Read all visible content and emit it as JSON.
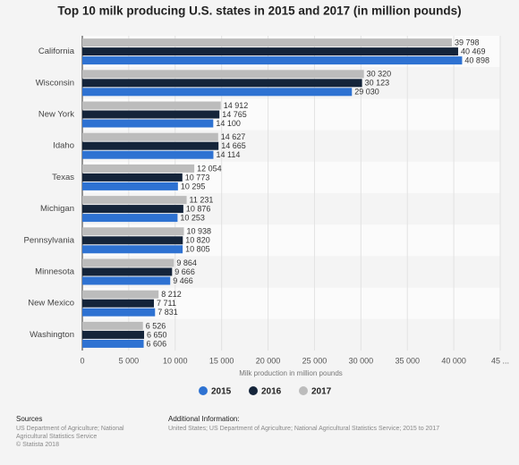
{
  "chart_data": {
    "type": "hbar",
    "title": "Top 10 milk producing U.S. states in 2015 and 2017 (in million pounds)",
    "x_label": "Milk production in million pounds",
    "categories": [
      "California",
      "Wisconsin",
      "New York",
      "Idaho",
      "Texas",
      "Michigan",
      "Pennsylvania",
      "Minnesota",
      "New Mexico",
      "Washington"
    ],
    "series": [
      {
        "name": "2015",
        "color": "#2e72d2",
        "values": [
          40898,
          29030,
          14100,
          14114,
          10295,
          10253,
          10805,
          9466,
          7831,
          6606
        ],
        "value_labels": [
          "40 898",
          "29 030",
          "14 100",
          "14 114",
          "10 295",
          "10 253",
          "10 805",
          "9 466",
          "7 831",
          "6 606"
        ]
      },
      {
        "name": "2016",
        "color": "#14243a",
        "values": [
          40469,
          30123,
          14765,
          14665,
          10773,
          10876,
          10820,
          9666,
          7711,
          6650
        ],
        "value_labels": [
          "40 469",
          "30 123",
          "14 765",
          "14 665",
          "10 773",
          "10 876",
          "10 820",
          "9 666",
          "7 711",
          "6 650"
        ]
      },
      {
        "name": "2017",
        "color": "#bcbcbc",
        "values": [
          39798,
          30320,
          14912,
          14627,
          12054,
          11231,
          10938,
          9864,
          8212,
          6526
        ],
        "value_labels": [
          "39 798",
          "30 320",
          "14 912",
          "14 627",
          "12 054",
          "11 231",
          "10 938",
          "9 864",
          "8 212",
          "6 526"
        ]
      }
    ],
    "xlim": [
      0,
      45000
    ],
    "xticks": [
      0,
      {
        "value": 5000,
        "label": "5 000"
      },
      {
        "value": 10000,
        "label": "10 000"
      },
      {
        "value": 15000,
        "label": "15 000"
      },
      {
        "value": 20000,
        "label": "20 000"
      },
      {
        "value": 25000,
        "label": "25 000"
      },
      {
        "value": 30000,
        "label": "30 000"
      },
      {
        "value": 35000,
        "label": "35 000"
      },
      {
        "value": 40000,
        "label": "40 000"
      },
      {
        "value": 45000,
        "label": "45 ..."
      }
    ],
    "grid": true,
    "legend": "bottom"
  },
  "footer": {
    "sources_title": "Sources",
    "sources_lines": [
      "US Department of Agriculture; National",
      "Agricultural Statistics Service",
      "© Statista 2018"
    ],
    "info_title": "Additional Information:",
    "info_text": "United States; US Department of Agriculture; National Agricultural Statistics Service; 2015 to 2017"
  }
}
